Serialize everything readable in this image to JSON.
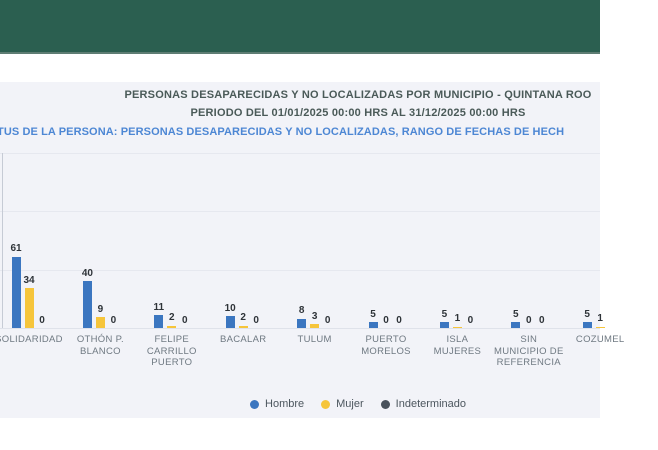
{
  "titles": {
    "line1": "PERSONAS DESAPARECIDAS Y NO LOCALIZADAS POR MUNICIPIO - QUINTANA ROO",
    "line2": "PERIODO DEL 01/01/2025 00:00 HRS AL 31/12/2025 00:00 HRS",
    "line3": "TUS DE LA PERSONA: PERSONAS DESAPARECIDAS Y NO LOCALIZADAS, RANGO DE FECHAS DE HECH"
  },
  "colors": {
    "header_green": "#2b5f50",
    "title_text": "#4a5a58",
    "subtitle_blue": "#4d87d4",
    "panel_bg": "#f2f3f8",
    "gridline": "#e6e8ef",
    "baseline": "#dfe2ea",
    "hombre_blue": "#3b76c0",
    "mujer_yellow": "#f6c53b",
    "indeterminado_gray": "#49525c"
  },
  "chart_data": {
    "type": "bar",
    "title": "PERSONAS DESAPARECIDAS Y NO LOCALIZADAS POR MUNICIPIO - QUINTANA ROO",
    "subtitle": "PERIODO DEL 01/01/2025 00:00 HRS AL 31/12/2025 00:00 HRS",
    "categories": [
      "SOLIDARIDAD",
      "OTHÓN P. BLANCO",
      "FELIPE CARRILLO PUERTO",
      "BACALAR",
      "TULUM",
      "PUERTO MORELOS",
      "ISLA MUJERES",
      "SIN MUNICIPIO DE REFERENCIA",
      "COZUMEL"
    ],
    "series": [
      {
        "name": "Hombre",
        "color": "#3b76c0",
        "values": [
          61,
          40,
          11,
          10,
          8,
          5,
          5,
          5,
          5
        ]
      },
      {
        "name": "Mujer",
        "color": "#f6c53b",
        "values": [
          34,
          9,
          2,
          2,
          3,
          0,
          1,
          0,
          1
        ]
      },
      {
        "name": "Indeterminado",
        "color": "#49525c",
        "values": [
          0,
          0,
          0,
          0,
          0,
          0,
          0,
          0,
          null
        ]
      }
    ],
    "ylim": [
      0,
      150
    ],
    "gridline_interval": 50,
    "grid": true,
    "y_axis_labels_visible": false,
    "legend_position": "bottom",
    "value_labels": true
  },
  "legend": {
    "items": [
      {
        "label": "Hombre",
        "color": "#3b76c0"
      },
      {
        "label": "Mujer",
        "color": "#f6c53b"
      },
      {
        "label": "Indeterminado",
        "color": "#49525c"
      }
    ]
  }
}
